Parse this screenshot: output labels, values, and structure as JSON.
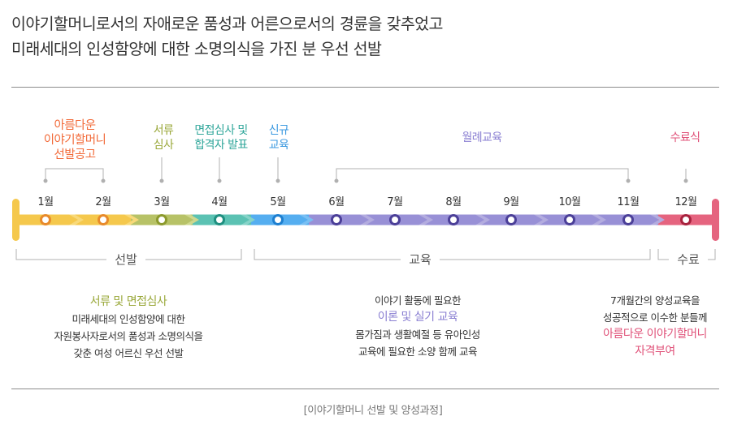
{
  "intro": {
    "line1": "이야기할머니로서의 자애로운 품성과 어른으로서의 경륜을 갖추었고",
    "line2": "미래세대의 인성함양에 대한 소명의식을 가진 분 우선 선발"
  },
  "phase_labels": [
    {
      "text": "아름다운\n이야기할머니\n선발공고",
      "color": "#f26b3a"
    },
    {
      "text": "서류\n심사",
      "color": "#9aa83a"
    },
    {
      "text": "면접심사 및\n합격자 발표",
      "color": "#2fa69a"
    },
    {
      "text": "신규\n교육",
      "color": "#3d9ae0"
    },
    {
      "text": "월례교육",
      "color": "#8a7fd2"
    },
    {
      "text": "수료식",
      "color": "#e0537a"
    }
  ],
  "months": [
    "1월",
    "2월",
    "3월",
    "4월",
    "5월",
    "6월",
    "7월",
    "8월",
    "9월",
    "10월",
    "11월",
    "12월"
  ],
  "stages": {
    "selection": "선발",
    "education": "교육",
    "completion": "수료"
  },
  "descriptions": {
    "selection": {
      "highlight": "서류 및 면접심사",
      "highlight_color": "#9aa83a",
      "lines": [
        "미래세대의 인성함양에 대한",
        "자원봉사자로서의 품성과 소명의식을",
        "갖춘 여성 어르신 우선 선발"
      ]
    },
    "education": {
      "line1": "이야기 활동에 필요한",
      "highlight": "이론 및 실기 교육",
      "highlight_color": "#8a7fd2",
      "lines": [
        "몸가짐과 생활예절 등 유아인성",
        "교육에 필요한 소양 함께 교육"
      ]
    },
    "completion": {
      "lines": [
        "7개월간의 양성교육을",
        "성공적으로 이수한 분들께"
      ],
      "highlight1": "아름다운 이야기할머니",
      "highlight2": "자격부여",
      "highlight_color": "#e0537a"
    }
  },
  "caption": "[이야기할머니 선발 및 양성과정]",
  "colors": {
    "yellow": "#f5c84c",
    "olive": "#b7c267",
    "teal": "#5bc2b3",
    "blue": "#55aef0",
    "purple": "#9890d6",
    "red": "#e5647f"
  }
}
